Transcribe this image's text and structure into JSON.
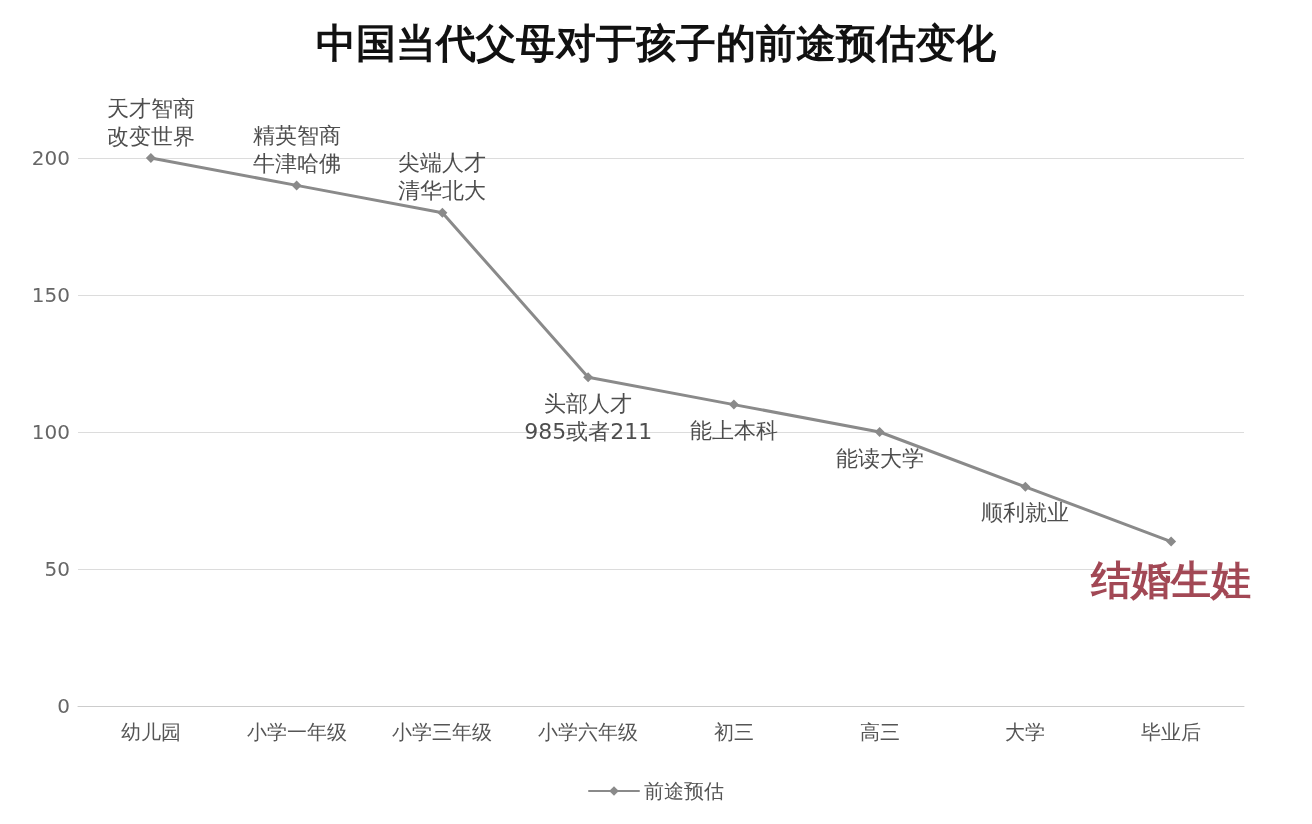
{
  "chart_data": {
    "type": "line",
    "title": "中国当代父母对于孩子的前途预估变化",
    "categories": [
      "幼儿园",
      "小学一年级",
      "小学三年级",
      "小学六年级",
      "初三",
      "高三",
      "大学",
      "毕业后"
    ],
    "series": [
      {
        "name": "前途预估",
        "color": "#8a8a8a",
        "values": [
          200,
          190,
          180,
          120,
          110,
          100,
          80,
          60
        ]
      }
    ],
    "ylim": [
      0,
      200
    ],
    "yticks": [
      0,
      50,
      100,
      150,
      200
    ],
    "grid": "y",
    "legend": "bottom",
    "marker": "diamond",
    "line_style": "solid",
    "annotations": [
      {
        "text": "天才智商",
        "x": "幼儿园",
        "y": 200
      },
      {
        "text": "改变世界",
        "x": "幼儿园",
        "y": 200
      },
      {
        "text": "精英智商",
        "x": "小学一年级",
        "y": 190
      },
      {
        "text": "牛津哈佛",
        "x": "小学一年级",
        "y": 190
      },
      {
        "text": "尖端人才",
        "x": "小学三年级",
        "y": 180
      },
      {
        "text": "清华北大",
        "x": "小学三年级",
        "y": 180
      },
      {
        "text": "头部人才",
        "x": "小学六年级",
        "y": 120
      },
      {
        "text": "985或者211",
        "x": "小学六年级",
        "y": 120
      },
      {
        "text": "能上本科",
        "x": "初三",
        "y": 110
      },
      {
        "text": "能读大学",
        "x": "高三",
        "y": 100
      },
      {
        "text": "顺利就业",
        "x": "大学",
        "y": 80
      },
      {
        "text": "结婚生娃",
        "x": "毕业后",
        "y": 60
      }
    ]
  }
}
